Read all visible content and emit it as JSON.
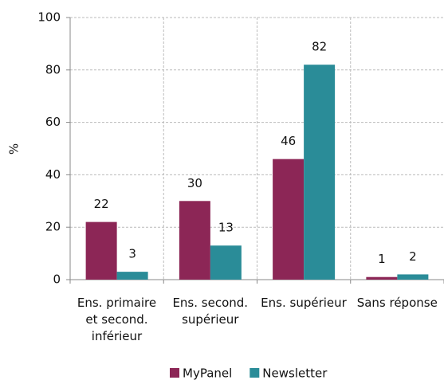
{
  "chart_data": {
    "type": "bar",
    "y_label": "%",
    "categories": [
      "Ens. primaire\net second.\ninférieur",
      "Ens. second.\nsupérieur",
      "Ens. supérieur",
      "Sans réponse"
    ],
    "series": [
      {
        "name": "MyPanel",
        "color": "#8c2656",
        "values": [
          22,
          30,
          46,
          1
        ]
      },
      {
        "name": "Newsletter",
        "color": "#2a8c98",
        "values": [
          3,
          13,
          82,
          2
        ]
      }
    ],
    "ylim": [
      0,
      100
    ],
    "yticks": [
      0,
      20,
      40,
      60,
      80,
      100
    ],
    "grid": true,
    "legend": "bottom"
  }
}
